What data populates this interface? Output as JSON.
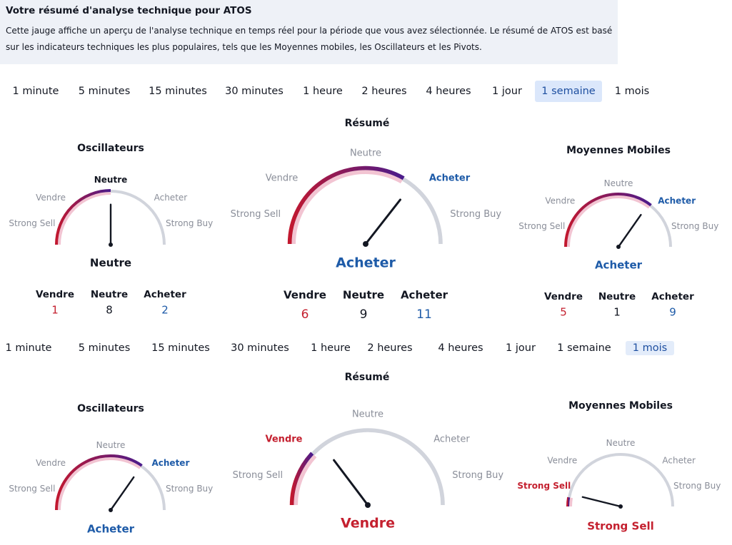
{
  "header": {
    "title": "Votre résumé d'analyse technique pour ATOS",
    "description_line1": "Cette jauge affiche un aperçu de l'analyse technique en temps réel pour la période que vous avez sélectionnée. Le résumé de ATOS est basé",
    "description_line2": "sur les indicateurs techniques les plus populaires, tels que les Moyennes mobiles, les  Oscillateurs et les Pivots."
  },
  "panels": [
    {
      "tabs": [
        "1 minute",
        "5 minutes",
        "15 minutes",
        "30 minutes",
        "1 heure",
        "2 heures",
        "4 heures",
        "1 jour",
        "1 semaine",
        "1 mois"
      ],
      "active_tab": 8,
      "summary_title": "Résumé",
      "gauges": [
        {
          "title": "Oscillateurs",
          "scale": [
            "Strong Sell",
            "Vendre",
            "Neutre",
            "Acheter",
            "Strong Buy"
          ],
          "result": "Neutre",
          "count_labels": [
            "Vendre",
            "Neutre",
            "Acheter"
          ],
          "count_values": [
            1,
            8,
            2
          ]
        },
        {
          "title": null,
          "scale": [
            "Strong Sell",
            "Vendre",
            "Neutre",
            "Acheter",
            "Strong Buy"
          ],
          "result": "Acheter",
          "count_labels": [
            "Vendre",
            "Neutre",
            "Acheter"
          ],
          "count_values": [
            6,
            9,
            11
          ]
        },
        {
          "title": "Moyennes Mobiles",
          "scale": [
            "Strong Sell",
            "Vendre",
            "Neutre",
            "Acheter",
            "Strong Buy"
          ],
          "result": "Acheter",
          "count_labels": [
            "Vendre",
            "Neutre",
            "Acheter"
          ],
          "count_values": [
            5,
            1,
            9
          ]
        }
      ]
    },
    {
      "tabs": [
        "1 minute",
        "5 minutes",
        "15 minutes",
        "30 minutes",
        "1 heure",
        "2 heures",
        "4 heures",
        "1 jour",
        "1 semaine",
        "1 mois"
      ],
      "active_tab": 9,
      "summary_title": "Résumé",
      "gauges": [
        {
          "title": "Oscillateurs",
          "scale": [
            "Strong Sell",
            "Vendre",
            "Neutre",
            "Acheter",
            "Strong Buy"
          ],
          "result": "Acheter"
        },
        {
          "title": null,
          "scale": [
            "Strong Sell",
            "Vendre",
            "Neutre",
            "Acheter",
            "Strong Buy"
          ],
          "result": "Vendre"
        },
        {
          "title": "Moyennes Mobiles",
          "scale": [
            "Strong Sell",
            "Vendre",
            "Neutre",
            "Acheter",
            "Strong Buy"
          ],
          "result": "Strong Sell"
        }
      ]
    }
  ]
}
